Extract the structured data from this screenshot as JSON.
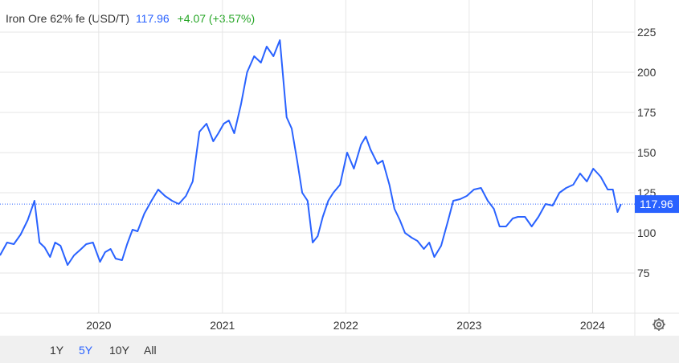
{
  "header": {
    "title": "Iron Ore 62% fe (USD/T)",
    "price": "117.96",
    "change": "+4.07 (+3.57%)"
  },
  "colors": {
    "line": "#2962ff",
    "up": "#26a626",
    "grid": "#e6e6e6",
    "ref": "#2962ff"
  },
  "ranges": [
    {
      "label": "1Y",
      "active": false
    },
    {
      "label": "5Y",
      "active": true
    },
    {
      "label": "10Y",
      "active": false
    },
    {
      "label": "All",
      "active": false
    }
  ],
  "settings_icon": "gear-icon",
  "chart_data": {
    "type": "line",
    "title": "Iron Ore 62% fe (USD/T)",
    "xlabel": "",
    "ylabel": "",
    "ylim": [
      50,
      245
    ],
    "xlim": [
      "2019-03-15",
      "2024-05-05"
    ],
    "yticks": [
      75,
      100,
      125,
      150,
      175,
      200,
      225
    ],
    "xticks": [
      "2020",
      "2021",
      "2022",
      "2023",
      "2024"
    ],
    "grid": true,
    "last_value": 117.96,
    "last_label": "117.96",
    "series": [
      {
        "name": "Iron Ore 62% fe (USD/T)",
        "x": [
          "2019-03-15",
          "2019-04-05",
          "2019-04-25",
          "2019-05-15",
          "2019-06-05",
          "2019-06-25",
          "2019-07-10",
          "2019-07-25",
          "2019-08-10",
          "2019-08-25",
          "2019-09-10",
          "2019-10-01",
          "2019-10-20",
          "2019-11-10",
          "2019-11-25",
          "2019-12-15",
          "2020-01-05",
          "2020-01-20",
          "2020-02-05",
          "2020-02-20",
          "2020-03-10",
          "2020-03-25",
          "2020-04-10",
          "2020-04-25",
          "2020-05-15",
          "2020-06-05",
          "2020-06-25",
          "2020-07-15",
          "2020-08-05",
          "2020-08-25",
          "2020-09-15",
          "2020-10-05",
          "2020-10-25",
          "2020-11-15",
          "2020-12-05",
          "2020-12-20",
          "2021-01-05",
          "2021-01-20",
          "2021-02-05",
          "2021-02-25",
          "2021-03-15",
          "2021-04-05",
          "2021-04-25",
          "2021-05-12",
          "2021-06-01",
          "2021-06-20",
          "2021-07-10",
          "2021-07-25",
          "2021-08-10",
          "2021-08-25",
          "2021-09-10",
          "2021-09-25",
          "2021-10-10",
          "2021-10-25",
          "2021-11-10",
          "2021-11-25",
          "2021-12-15",
          "2022-01-05",
          "2022-01-25",
          "2022-02-15",
          "2022-03-01",
          "2022-03-15",
          "2022-04-05",
          "2022-04-20",
          "2022-05-10",
          "2022-05-25",
          "2022-06-10",
          "2022-06-25",
          "2022-07-15",
          "2022-08-01",
          "2022-08-20",
          "2022-09-05",
          "2022-09-20",
          "2022-10-10",
          "2022-10-31",
          "2022-11-15",
          "2022-12-05",
          "2022-12-25",
          "2023-01-15",
          "2023-02-05",
          "2023-02-25",
          "2023-03-15",
          "2023-04-01",
          "2023-04-20",
          "2023-05-10",
          "2023-05-25",
          "2023-06-15",
          "2023-07-05",
          "2023-07-25",
          "2023-08-15",
          "2023-09-05",
          "2023-09-25",
          "2023-10-15",
          "2023-11-05",
          "2023-11-25",
          "2023-12-15",
          "2024-01-03",
          "2024-01-25",
          "2024-02-15",
          "2024-03-01",
          "2024-03-15",
          "2024-03-25"
        ],
        "values": [
          86,
          94,
          93,
          99,
          108,
          120,
          94,
          91,
          85,
          94,
          92,
          80,
          86,
          90,
          93,
          94,
          82,
          88,
          90,
          84,
          83,
          93,
          102,
          101,
          112,
          120,
          127,
          123,
          120,
          118,
          123,
          132,
          163,
          168,
          157,
          162,
          168,
          170,
          162,
          180,
          200,
          210,
          206,
          216,
          210,
          220,
          172,
          165,
          145,
          125,
          120,
          94,
          98,
          110,
          120,
          125,
          130,
          150,
          140,
          155,
          160,
          152,
          143,
          145,
          130,
          115,
          108,
          100,
          97,
          95,
          90,
          94,
          85,
          92,
          108,
          120,
          121,
          123,
          127,
          128,
          120,
          115,
          104,
          104,
          109,
          110,
          110,
          104,
          110,
          118,
          117,
          125,
          128,
          130,
          137,
          132,
          140,
          135,
          127,
          127,
          113,
          117.96
        ]
      }
    ]
  }
}
